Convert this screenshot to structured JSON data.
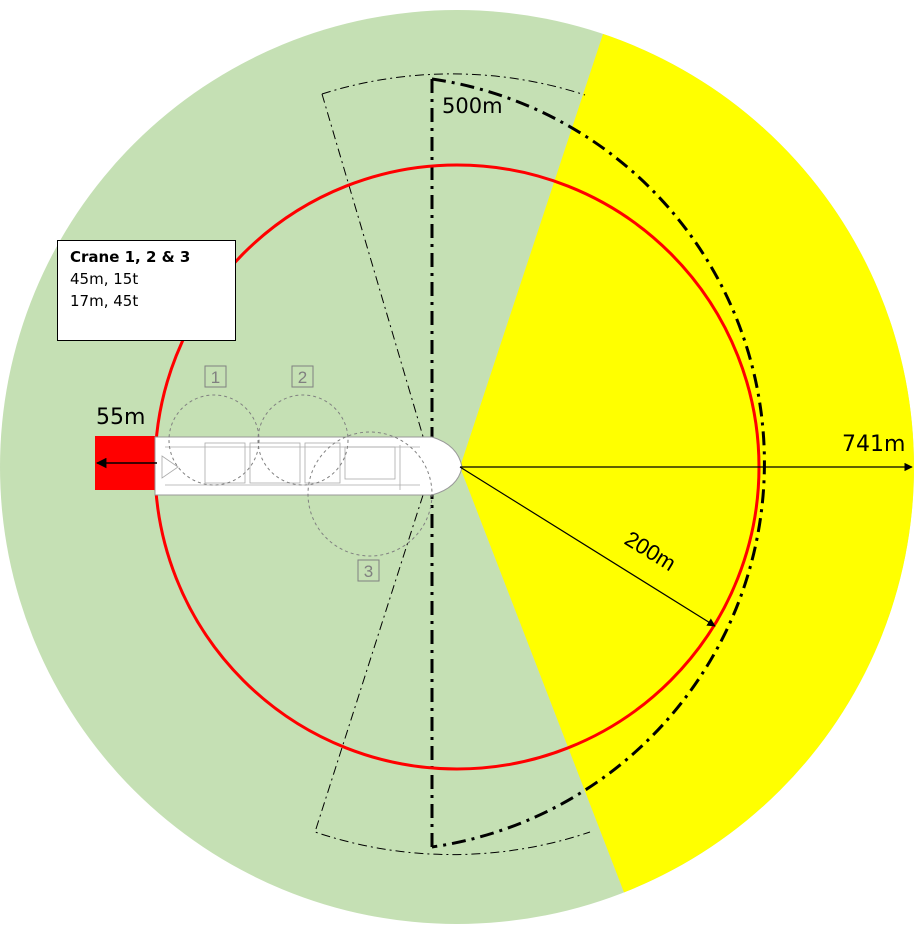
{
  "colors": {
    "outer_zone": "#c5e0b4",
    "yellow_sector": "#ffff00",
    "red_circle": "#ff0000",
    "red_zone": "#ff0000",
    "lines": "#000000",
    "crane_circles": "#808080"
  },
  "crane_box": {
    "title": "Crane 1, 2 & 3",
    "lines": [
      "45m, 15t",
      "17m, 45t"
    ]
  },
  "crane_markers": [
    "1",
    "2",
    "3"
  ],
  "dimensions": {
    "left": "55m",
    "top": "500m",
    "right": "741m",
    "radius": "200m"
  }
}
